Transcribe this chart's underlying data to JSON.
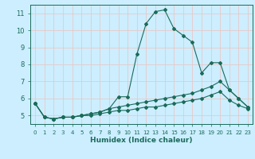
{
  "xlabel": "Humidex (Indice chaleur)",
  "ylabel": "",
  "bg_color": "#cceeff",
  "grid_color": "#e8c8c8",
  "line_color": "#1a6b5a",
  "xlim": [
    -0.5,
    23.5
  ],
  "ylim": [
    4.5,
    11.5
  ],
  "xticks": [
    0,
    1,
    2,
    3,
    4,
    5,
    6,
    7,
    8,
    9,
    10,
    11,
    12,
    13,
    14,
    15,
    16,
    17,
    18,
    19,
    20,
    21,
    22,
    23
  ],
  "yticks": [
    5,
    6,
    7,
    8,
    9,
    10,
    11
  ],
  "line1_x": [
    0,
    1,
    2,
    3,
    4,
    5,
    6,
    7,
    8,
    9,
    10,
    11,
    12,
    13,
    14,
    15,
    16,
    17,
    18,
    19,
    20,
    21,
    22,
    23
  ],
  "line1_y": [
    5.7,
    4.9,
    4.8,
    4.9,
    4.9,
    5.0,
    5.1,
    5.2,
    5.4,
    6.1,
    6.1,
    8.6,
    10.4,
    11.1,
    11.2,
    10.1,
    9.7,
    9.3,
    7.5,
    8.1,
    8.1,
    6.5,
    6.0,
    5.5
  ],
  "line2_x": [
    0,
    1,
    2,
    3,
    4,
    5,
    6,
    7,
    8,
    9,
    10,
    11,
    12,
    13,
    14,
    15,
    16,
    17,
    18,
    19,
    20,
    21,
    22,
    23
  ],
  "line2_y": [
    5.7,
    4.9,
    4.8,
    4.9,
    4.9,
    5.0,
    5.1,
    5.2,
    5.4,
    5.5,
    5.6,
    5.7,
    5.8,
    5.9,
    6.0,
    6.1,
    6.2,
    6.3,
    6.5,
    6.7,
    7.0,
    6.5,
    6.0,
    5.5
  ],
  "line3_x": [
    0,
    1,
    2,
    3,
    4,
    5,
    6,
    7,
    8,
    9,
    10,
    11,
    12,
    13,
    14,
    15,
    16,
    17,
    18,
    19,
    20,
    21,
    22,
    23
  ],
  "line3_y": [
    5.7,
    4.9,
    4.8,
    4.9,
    4.9,
    5.0,
    5.0,
    5.1,
    5.2,
    5.3,
    5.3,
    5.4,
    5.5,
    5.5,
    5.6,
    5.7,
    5.8,
    5.9,
    6.0,
    6.2,
    6.4,
    5.9,
    5.6,
    5.4
  ]
}
